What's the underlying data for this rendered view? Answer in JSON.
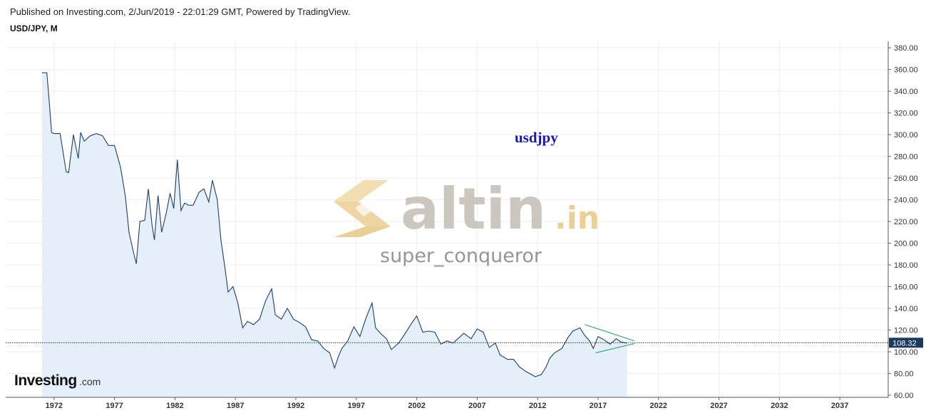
{
  "header": {
    "published": "Published on Investing.com, 2/Jun/2019 - 22:01:29 GMT, Powered by TradingView.",
    "symbol": "USD/JPY, M"
  },
  "branding": {
    "logo_main": "Investing",
    "logo_suffix": ".com"
  },
  "watermark": {
    "brand": "altin",
    "brand_suffix": ".in",
    "user": "super_conqueror"
  },
  "annotation": {
    "text": "usdjpy",
    "color": "#1a14b4"
  },
  "colors": {
    "line": "#1f3f63",
    "area": "#e4effa",
    "grid": "#eeeeee",
    "triangle": "#3aa88c",
    "price_tag": "#1b3a5c",
    "watermark_gold": "#e9cb8a",
    "watermark_gray": "#c7c2b8"
  },
  "chart_data": {
    "type": "line",
    "title": "USD/JPY, M",
    "xlabel": "",
    "ylabel": "",
    "xlim": [
      1968,
      2041
    ],
    "ylim": [
      58,
      386
    ],
    "x_ticks": [
      1972,
      1977,
      1982,
      1987,
      1992,
      1997,
      2002,
      2007,
      2012,
      2017,
      2022,
      2027,
      2032,
      2037
    ],
    "y_ticks": [
      60,
      80,
      100,
      120,
      140,
      160,
      180,
      200,
      220,
      240,
      260,
      280,
      300,
      320,
      340,
      360,
      380
    ],
    "grid": true,
    "last_price": 108.32,
    "last_price_label": "108.32",
    "series": [
      {
        "x": [
          1971.0,
          1971.4,
          1971.6,
          1971.8,
          1972.0,
          1972.5,
          1973.0,
          1973.2,
          1973.6,
          1974.0,
          1974.2,
          1974.5,
          1975.0,
          1975.5,
          1976.0,
          1976.5,
          1977.0,
          1977.5,
          1977.9,
          1978.2,
          1978.6,
          1978.8,
          1979.1,
          1979.5,
          1979.8,
          1980.1,
          1980.3,
          1980.6,
          1980.9,
          1981.3,
          1981.6,
          1981.9,
          1982.2,
          1982.5,
          1982.8,
          1983.1,
          1983.5,
          1984.0,
          1984.4,
          1984.8,
          1985.1,
          1985.5,
          1985.8,
          1986.1,
          1986.4,
          1986.8,
          1987.2,
          1987.6,
          1988.0,
          1988.5,
          1989.0,
          1989.5,
          1990.0,
          1990.3,
          1990.8,
          1991.3,
          1991.8,
          1992.3,
          1992.8,
          1993.3,
          1993.8,
          1994.3,
          1994.8,
          1995.2,
          1995.5,
          1995.8,
          1996.3,
          1996.8,
          1997.3,
          1997.8,
          1998.3,
          1998.6,
          1999.0,
          1999.5,
          1999.9,
          2000.5,
          2001.0,
          2001.5,
          2002.0,
          2002.5,
          2003.0,
          2003.5,
          2004.0,
          2004.5,
          2005.0,
          2005.5,
          2005.9,
          2006.5,
          2007.0,
          2007.5,
          2008.0,
          2008.5,
          2008.9,
          2009.5,
          2010.0,
          2010.5,
          2011.0,
          2011.5,
          2011.8,
          2012.3,
          2012.7,
          2013.0,
          2013.4,
          2014.0,
          2014.5,
          2014.9,
          2015.5,
          2015.9,
          2016.3,
          2016.6,
          2017.0,
          2017.5,
          2018.0,
          2018.5,
          2018.9,
          2019.4
        ],
        "values": [
          357,
          357,
          330,
          302,
          301,
          301,
          266,
          265,
          300,
          278,
          302,
          294,
          299,
          301,
          299,
          290,
          290,
          270,
          243,
          210,
          190,
          181,
          220,
          221,
          250,
          217,
          203,
          244,
          210,
          229,
          246,
          232,
          277,
          230,
          237,
          235,
          235,
          247,
          250,
          238,
          258,
          240,
          203,
          180,
          155,
          160,
          145,
          122,
          128,
          125,
          130,
          147,
          158,
          134,
          130,
          140,
          130,
          127,
          123,
          111,
          110,
          103,
          99,
          85,
          95,
          103,
          110,
          123,
          114,
          131,
          145,
          122,
          117,
          112,
          102,
          108,
          116,
          125,
          133,
          118,
          119,
          118,
          107,
          110,
          108,
          113,
          117,
          112,
          121,
          118,
          104,
          108,
          97,
          93,
          93,
          86,
          82,
          79,
          77,
          79,
          86,
          94,
          99,
          103,
          113,
          119,
          122,
          115,
          110,
          103,
          114,
          111,
          107,
          112,
          109,
          108
        ]
      }
    ]
  }
}
